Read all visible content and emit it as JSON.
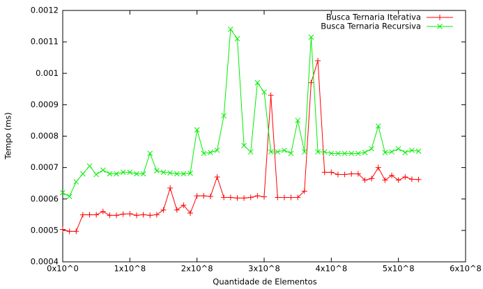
{
  "chart_data": {
    "type": "line",
    "xlabel": "Quantidade de Elementos",
    "ylabel": "Tempo (ms)",
    "x": [
      0,
      10000000,
      20000000,
      30000000,
      40000000,
      50000000,
      60000000,
      70000000,
      80000000,
      90000000,
      100000000,
      110000000,
      120000000,
      130000000,
      140000000,
      150000000,
      160000000,
      170000000,
      180000000,
      190000000,
      200000000,
      210000000,
      220000000,
      230000000,
      240000000,
      250000000,
      260000000,
      270000000,
      280000000,
      290000000,
      300000000,
      310000000,
      320000000,
      330000000,
      340000000,
      350000000,
      360000000,
      370000000,
      380000000,
      390000000,
      400000000,
      410000000,
      420000000,
      430000000,
      440000000,
      450000000,
      460000000,
      470000000,
      480000000,
      490000000,
      500000000,
      510000000,
      520000000,
      530000000
    ],
    "series": [
      {
        "name": "Busca Ternaria Iterativa",
        "color": "#ff0000",
        "marker": "+",
        "values": [
          0.000503,
          0.000497,
          0.000497,
          0.00055,
          0.00055,
          0.00055,
          0.00056,
          0.000548,
          0.000548,
          0.000552,
          0.000553,
          0.000548,
          0.00055,
          0.000548,
          0.00055,
          0.000565,
          0.000635,
          0.000565,
          0.00058,
          0.000555,
          0.00061,
          0.00061,
          0.000608,
          0.00067,
          0.000605,
          0.000605,
          0.000603,
          0.000603,
          0.000605,
          0.00061,
          0.000607,
          0.00093,
          0.000605,
          0.000605,
          0.000605,
          0.000605,
          0.000625,
          0.00097,
          0.00104,
          0.000685,
          0.000685,
          0.000678,
          0.000678,
          0.00068,
          0.00068,
          0.00066,
          0.000665,
          0.0007,
          0.00066,
          0.000675,
          0.00066,
          0.00067,
          0.000663,
          0.000662
        ]
      },
      {
        "name": "Busca Ternaria Recursiva",
        "color": "#00ee00",
        "marker": "x",
        "values": [
          0.00062,
          0.000608,
          0.000655,
          0.00068,
          0.000705,
          0.000678,
          0.000692,
          0.00068,
          0.00068,
          0.000685,
          0.000685,
          0.00068,
          0.00068,
          0.000745,
          0.00069,
          0.000685,
          0.000683,
          0.00068,
          0.00068,
          0.000682,
          0.00082,
          0.000745,
          0.000748,
          0.000755,
          0.000865,
          0.00114,
          0.00111,
          0.00077,
          0.00075,
          0.00097,
          0.00094,
          0.00075,
          0.00075,
          0.000755,
          0.000745,
          0.00085,
          0.00075,
          0.001115,
          0.00075,
          0.00075,
          0.000745,
          0.000745,
          0.000745,
          0.000745,
          0.000745,
          0.000748,
          0.00076,
          0.000832,
          0.000748,
          0.00075,
          0.00076,
          0.000748,
          0.000755,
          0.000752
        ]
      }
    ],
    "xlim": [
      0,
      600000000
    ],
    "xticks": [
      {
        "value": 0,
        "label": "0x10^0"
      },
      {
        "value": 100000000,
        "label": "1x10^8"
      },
      {
        "value": 200000000,
        "label": "2x10^8"
      },
      {
        "value": 300000000,
        "label": "3x10^8"
      },
      {
        "value": 400000000,
        "label": "4x10^8"
      },
      {
        "value": 500000000,
        "label": "5x10^8"
      },
      {
        "value": 600000000,
        "label": "6x10^8"
      }
    ],
    "ylim": [
      0.0004,
      0.0012
    ],
    "yticks": [
      0.0004,
      0.0005,
      0.0006,
      0.0007,
      0.0008,
      0.0009,
      0.001,
      0.0011,
      0.0012
    ],
    "legend": "top-right"
  }
}
